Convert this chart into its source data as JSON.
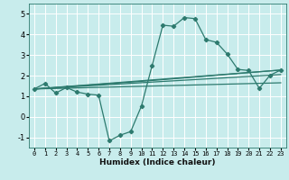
{
  "title": "",
  "xlabel": "Humidex (Indice chaleur)",
  "bg_color": "#c8ecec",
  "line_color": "#2d7a6e",
  "grid_color": "#ffffff",
  "xlim": [
    -0.5,
    23.5
  ],
  "ylim": [
    -1.5,
    5.5
  ],
  "xticks": [
    0,
    1,
    2,
    3,
    4,
    5,
    6,
    7,
    8,
    9,
    10,
    11,
    12,
    13,
    14,
    15,
    16,
    17,
    18,
    19,
    20,
    21,
    22,
    23
  ],
  "yticks": [
    -1,
    0,
    1,
    2,
    3,
    4,
    5
  ],
  "main_series": {
    "x": [
      0,
      1,
      2,
      3,
      4,
      5,
      6,
      7,
      8,
      9,
      10,
      11,
      12,
      13,
      14,
      15,
      16,
      17,
      18,
      19,
      20,
      21,
      22,
      23
    ],
    "y": [
      1.35,
      1.62,
      1.15,
      1.42,
      1.2,
      1.1,
      1.05,
      -1.17,
      -0.9,
      -0.72,
      0.52,
      2.5,
      4.45,
      4.4,
      4.82,
      4.77,
      3.75,
      3.62,
      3.05,
      2.3,
      2.25,
      1.38,
      2.02,
      2.27
    ]
  },
  "trend_lines": [
    {
      "x": [
        0,
        23
      ],
      "y": [
        1.35,
        1.65
      ]
    },
    {
      "x": [
        0,
        23
      ],
      "y": [
        1.35,
        2.05
      ]
    },
    {
      "x": [
        0,
        23
      ],
      "y": [
        1.35,
        2.27
      ]
    },
    {
      "x": [
        0,
        10,
        23
      ],
      "y": [
        1.35,
        1.72,
        2.27
      ]
    }
  ]
}
